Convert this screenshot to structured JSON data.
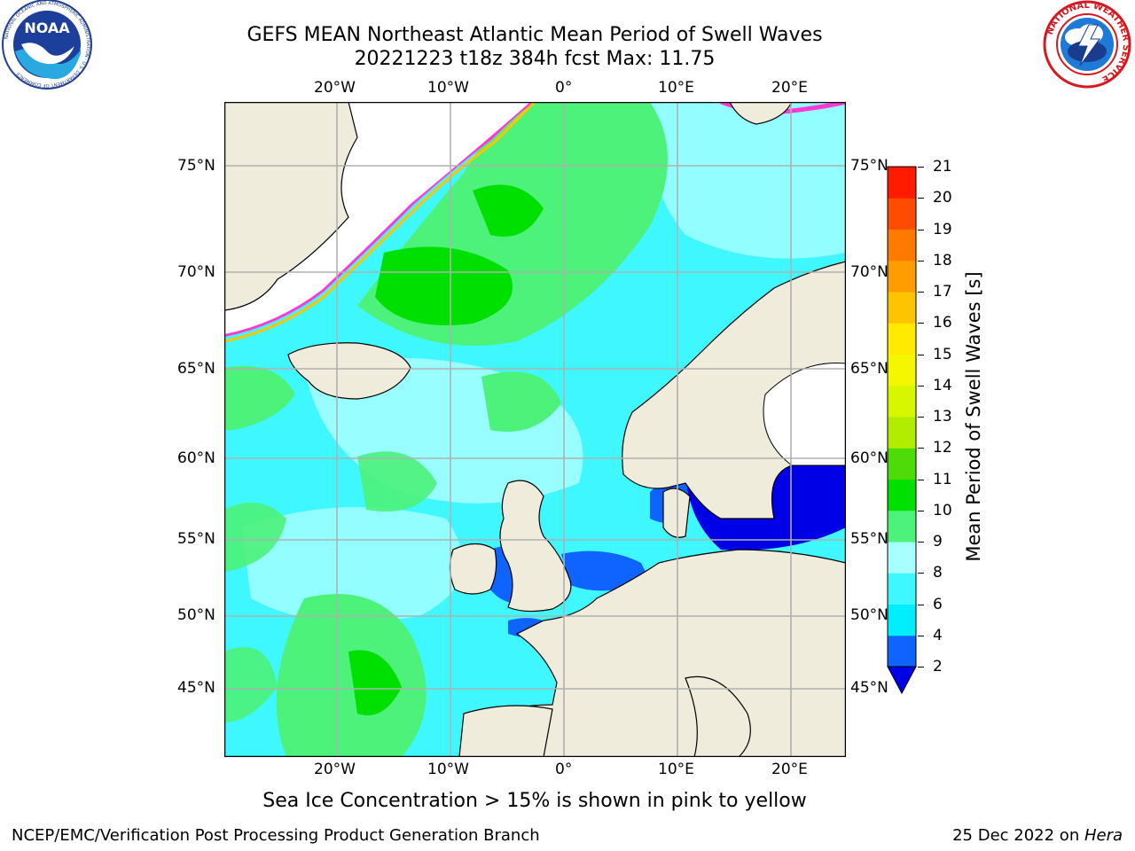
{
  "header": {
    "title_line1": "GEFS MEAN Northeast Atlantic Mean Period of Swell Waves",
    "title_line2": "20221223 t18z 384h fcst   Max: 11.75"
  },
  "logos": {
    "left": {
      "text": "NOAA",
      "ring_text": "NATIONAL OCEANIC AND ATMOSPHERIC ADMINISTRATION · U.S. DEPARTMENT OF COMMERCE"
    },
    "right": {
      "ring_text": "NATIONAL WEATHER SERVICE"
    }
  },
  "map": {
    "lon_labels": [
      "20°W",
      "10°W",
      "0°",
      "10°E",
      "20°E"
    ],
    "lat_labels": [
      "75°N",
      "70°N",
      "65°N",
      "60°N",
      "55°N",
      "50°N",
      "45°N"
    ]
  },
  "colorbar": {
    "label": "Mean Period of Swell Waves [s]",
    "ticks": [
      "2",
      "4",
      "6",
      "8",
      "9",
      "10",
      "11",
      "12",
      "13",
      "14",
      "15",
      "16",
      "17",
      "18",
      "19",
      "20",
      "21"
    ],
    "colors": [
      "#0f63ff",
      "#00eeff",
      "#3ff7ff",
      "#a8ffff",
      "#4cf27a",
      "#00e000",
      "#4edb08",
      "#b0ed00",
      "#d7f700",
      "#f5f700",
      "#ffea00",
      "#ffc400",
      "#ff9c00",
      "#ff7a00",
      "#ff4c00",
      "#ff1a00"
    ],
    "extend_color": "#0000e6"
  },
  "caption": "Sea Ice Concentration > 15% is shown in pink to yellow",
  "footer": {
    "left": "NCEP/EMC/Verification Post Processing Product Generation Branch",
    "date": "25 Dec 2022 on ",
    "machine": "Hera"
  }
}
